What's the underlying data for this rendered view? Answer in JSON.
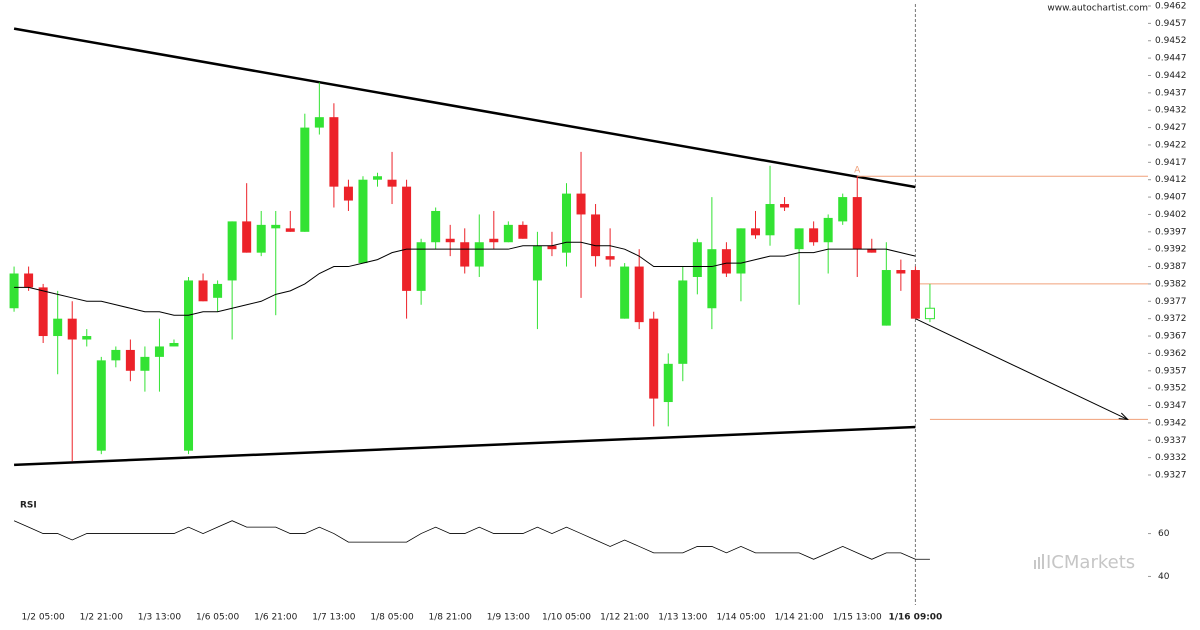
{
  "chart_data": {
    "type": "candlestick",
    "source": "www.autochartist.com",
    "watermark": "ICMarkets",
    "categories": [
      null,
      null,
      "1/2 05:00",
      null,
      null,
      null,
      "1/2 21:00",
      null,
      null,
      null,
      "1/3 13:00",
      null,
      null,
      null,
      "1/6 05:00",
      null,
      null,
      null,
      "1/6 21:00",
      null,
      null,
      null,
      "1/7 13:00",
      null,
      null,
      null,
      "1/8 05:00",
      null,
      null,
      null,
      "1/8 21:00",
      null,
      null,
      null,
      "1/9 13:00",
      null,
      null,
      null,
      "1/10 05:00",
      null,
      null,
      null,
      "1/12 21:00",
      null,
      null,
      null,
      "1/13 13:00",
      null,
      null,
      null,
      "1/14 05:00",
      null,
      null,
      null,
      "1/14 21:00",
      null,
      null,
      null,
      "1/15 13:00",
      null,
      null,
      null,
      "1/16 09:00",
      null
    ],
    "open": [
      0.9375,
      0.9385,
      0.9381,
      0.9367,
      0.9372,
      0.9366,
      0.9334,
      0.936,
      0.9363,
      0.9357,
      0.9361,
      0.9364,
      0.9334,
      0.9383,
      0.9378,
      0.9383,
      0.94,
      0.9391,
      0.9398,
      0.9398,
      0.9397,
      0.9427,
      0.943,
      0.941,
      0.9388,
      0.9412,
      0.9412,
      0.941,
      0.938,
      0.9394,
      0.9395,
      0.9394,
      0.9387,
      0.9395,
      0.9394,
      0.9399,
      0.9383,
      0.9393,
      0.9391,
      0.9408,
      0.9402,
      0.939,
      0.9372,
      0.9387,
      0.9372,
      0.9348,
      0.9359,
      0.9384,
      0.9375,
      0.9392,
      0.9385,
      0.9398,
      0.9396,
      0.9405,
      0.9392,
      0.9398,
      0.9394,
      0.94,
      0.9407,
      0.9392,
      0.937,
      0.9386,
      0.9386,
      0.9372
    ],
    "high": [
      0.9387,
      0.9387,
      0.9382,
      0.938,
      0.9377,
      0.9369,
      0.9361,
      0.9364,
      0.9366,
      0.9364,
      0.9372,
      0.9366,
      0.9384,
      0.9385,
      0.9383,
      0.94,
      0.9411,
      0.9403,
      0.9403,
      0.9403,
      0.9431,
      0.944,
      0.9434,
      0.9412,
      0.9413,
      0.9414,
      0.942,
      0.9412,
      0.9395,
      0.9404,
      0.9399,
      0.9398,
      0.9402,
      0.9403,
      0.94,
      0.94,
      0.9397,
      0.9397,
      0.9411,
      0.942,
      0.9405,
      0.9398,
      0.9388,
      0.9392,
      0.9374,
      0.9362,
      0.9387,
      0.9395,
      0.9407,
      0.9394,
      0.9398,
      0.9403,
      0.9416,
      0.9407,
      0.9398,
      0.94,
      0.9402,
      0.9408,
      0.9413,
      0.9395,
      0.9394,
      0.9389,
      0.9387,
      0.9382
    ],
    "low": [
      0.9374,
      0.938,
      0.9365,
      0.9356,
      0.9331,
      0.9364,
      0.9333,
      0.9358,
      0.9354,
      0.9351,
      0.9351,
      0.9364,
      0.9333,
      0.9377,
      0.9374,
      0.9366,
      0.9391,
      0.939,
      0.9373,
      0.9397,
      0.9397,
      0.9425,
      0.9404,
      0.9403,
      0.9388,
      0.941,
      0.9405,
      0.9372,
      0.9376,
      0.9392,
      0.939,
      0.9385,
      0.9384,
      0.9392,
      0.9394,
      0.9395,
      0.9369,
      0.939,
      0.9387,
      0.9378,
      0.9387,
      0.9387,
      0.9372,
      0.9369,
      0.9341,
      0.9341,
      0.9354,
      0.9379,
      0.9369,
      0.9384,
      0.9377,
      0.9395,
      0.9393,
      0.9403,
      0.9376,
      0.9393,
      0.9385,
      0.9399,
      0.9384,
      0.9391,
      0.937,
      0.938,
      0.9372,
      0.9371
    ],
    "close": [
      0.9385,
      0.9381,
      0.9367,
      0.9372,
      0.9366,
      0.9367,
      0.936,
      0.9363,
      0.9357,
      0.9361,
      0.9364,
      0.9365,
      0.9383,
      0.9377,
      0.9382,
      0.94,
      0.9391,
      0.9399,
      0.9399,
      0.9397,
      0.9427,
      0.943,
      0.941,
      0.9406,
      0.9412,
      0.9413,
      0.941,
      0.938,
      0.9394,
      0.9403,
      0.9394,
      0.9387,
      0.9394,
      0.9394,
      0.9399,
      0.9395,
      0.9393,
      0.9392,
      0.9408,
      0.9402,
      0.939,
      0.9389,
      0.9387,
      0.9371,
      0.9349,
      0.9359,
      0.9383,
      0.9394,
      0.9392,
      0.9385,
      0.9398,
      0.9396,
      0.9405,
      0.9404,
      0.9398,
      0.9394,
      0.9401,
      0.9407,
      0.9392,
      0.9391,
      0.9386,
      0.9385,
      0.9372,
      0.9375
    ],
    "up_color": "#33e233",
    "down_color": "#ec2229",
    "last_candle_hollow": true,
    "moving_average": {
      "color": "#000000",
      "values": [
        0.9381,
        0.9381,
        0.938,
        0.9379,
        0.9378,
        0.9377,
        0.9377,
        0.9376,
        0.9375,
        0.9374,
        0.9374,
        0.9373,
        0.9373,
        0.9374,
        0.9374,
        0.9375,
        0.9376,
        0.9377,
        0.9379,
        0.938,
        0.9382,
        0.9385,
        0.9387,
        0.9387,
        0.9388,
        0.9389,
        0.9391,
        0.9392,
        0.9392,
        0.9392,
        0.9392,
        0.9392,
        0.9392,
        0.9392,
        0.9392,
        0.9393,
        0.9393,
        0.9393,
        0.9394,
        0.9394,
        0.9393,
        0.9393,
        0.9392,
        0.939,
        0.9387,
        0.9387,
        0.9387,
        0.9387,
        0.9387,
        0.9388,
        0.9388,
        0.9389,
        0.939,
        0.939,
        0.9391,
        0.9391,
        0.9392,
        0.9392,
        0.9392,
        0.9392,
        0.9392,
        0.9391,
        0.939,
        null
      ]
    },
    "trend_lines": [
      {
        "start": [
          0,
          0.94555
        ],
        "end": [
          62,
          0.94099
        ]
      },
      {
        "start": [
          0,
          0.93299
        ],
        "end": [
          62,
          0.93408
        ]
      }
    ],
    "levels_color": "#f0a07a",
    "levels": [
      {
        "value": 0.9413,
        "start": 58,
        "label": "A"
      },
      {
        "value": 0.9382,
        "start": 62
      },
      {
        "value": 0.9343,
        "start": 63
      }
    ],
    "forecast_arrow": {
      "start": [
        62,
        0.9372
      ],
      "end": [
        76.6,
        0.9343
      ]
    },
    "current_index": 62,
    "xlim": [
      -0.28,
      78
    ],
    "ylim": [
      0.9327,
      0.9462
    ],
    "yticks": [
      0.9327,
      0.9332,
      0.9337,
      0.9342,
      0.9347,
      0.9352,
      0.9357,
      0.9362,
      0.9367,
      0.9372,
      0.9377,
      0.9382,
      0.9387,
      0.9392,
      0.9397,
      0.9402,
      0.9407,
      0.9412,
      0.9417,
      0.9422,
      0.9427,
      0.9432,
      0.9437,
      0.9442,
      0.9447,
      0.9452,
      0.9457,
      0.9462
    ],
    "rsi": {
      "label": "RSI",
      "ylim": [
        29,
        78
      ],
      "yticks": [
        40,
        60
      ],
      "values": [
        66,
        63,
        60,
        60,
        57,
        60,
        60,
        60,
        60,
        60,
        60,
        60,
        63,
        60,
        63,
        66,
        63,
        63,
        63,
        60,
        60,
        63,
        60,
        56,
        56,
        56,
        56,
        56,
        60,
        63,
        60,
        60,
        63,
        60,
        60,
        60,
        63,
        60,
        63,
        60,
        57,
        54,
        57,
        54,
        51,
        51,
        51,
        54,
        54,
        51,
        54,
        51,
        51,
        51,
        51,
        48,
        51,
        54,
        51,
        48,
        51,
        51,
        48,
        48
      ]
    }
  }
}
